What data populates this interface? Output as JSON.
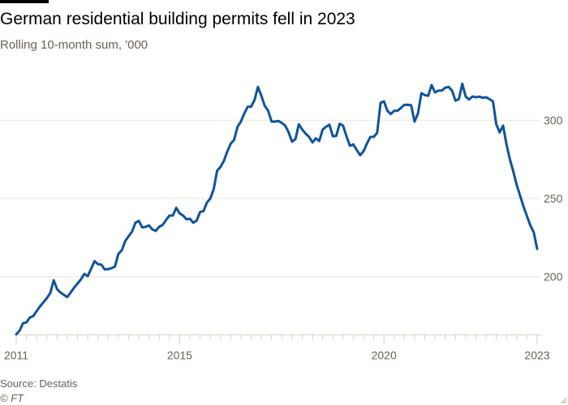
{
  "title": "German residential building permits fell in 2023",
  "subtitle": "Rolling 10-month sum, '000",
  "source": "Source: Destatis",
  "copyright": "© FT",
  "colors": {
    "line": "#0f5499",
    "grid": "#e9e3dd",
    "axis": "#d6cfc8",
    "text": "#66605c"
  },
  "chart_data": {
    "type": "line",
    "title": "German residential building permits fell in 2023",
    "subtitle": "Rolling 10-month sum, '000",
    "xlabel": "",
    "ylabel": "",
    "xlim": [
      "2011-01",
      "2023-10"
    ],
    "ylim": [
      163,
      330
    ],
    "grid": true,
    "y_axis_side": "right",
    "y_ticks": [
      200,
      250,
      300
    ],
    "y_tick_labels": [
      "200",
      "250",
      "300"
    ],
    "x_ticks": [
      "2011-01",
      "2015-01",
      "2020-01",
      "2023-10"
    ],
    "x_tick_labels": [
      "2011",
      "2015",
      "2020",
      "2023"
    ],
    "x_minor_ticks": "quarterly",
    "series": [
      {
        "color": "#0f5499",
        "x": [
          "2011-01",
          "2011-02",
          "2011-03",
          "2011-04",
          "2011-05",
          "2011-06",
          "2011-07",
          "2011-08",
          "2011-09",
          "2011-10",
          "2011-11",
          "2011-12",
          "2012-01",
          "2012-02",
          "2012-03",
          "2012-04",
          "2012-05",
          "2012-06",
          "2012-07",
          "2012-08",
          "2012-09",
          "2012-10",
          "2012-11",
          "2012-12",
          "2013-01",
          "2013-02",
          "2013-03",
          "2013-04",
          "2013-05",
          "2013-06",
          "2013-07",
          "2013-08",
          "2013-09",
          "2013-10",
          "2013-11",
          "2013-12",
          "2014-01",
          "2014-02",
          "2014-03",
          "2014-04",
          "2014-05",
          "2014-06",
          "2014-07",
          "2014-08",
          "2014-09",
          "2014-10",
          "2014-11",
          "2014-12",
          "2015-01",
          "2015-02",
          "2015-03",
          "2015-04",
          "2015-05",
          "2015-06",
          "2015-07",
          "2015-08",
          "2015-09",
          "2015-10",
          "2015-11",
          "2015-12",
          "2016-01",
          "2016-02",
          "2016-03",
          "2016-04",
          "2016-05",
          "2016-06",
          "2016-07",
          "2016-08",
          "2016-09",
          "2016-10",
          "2016-11",
          "2016-12",
          "2017-01",
          "2017-02",
          "2017-03",
          "2017-04",
          "2017-05",
          "2017-06",
          "2017-07",
          "2017-08",
          "2017-09",
          "2017-10",
          "2017-11",
          "2017-12",
          "2018-01",
          "2018-02",
          "2018-03",
          "2018-04",
          "2018-05",
          "2018-06",
          "2018-07",
          "2018-08",
          "2018-09",
          "2018-10",
          "2018-11",
          "2018-12",
          "2019-01",
          "2019-02",
          "2019-03",
          "2019-04",
          "2019-05",
          "2019-06",
          "2019-07",
          "2019-08",
          "2019-09",
          "2019-10",
          "2019-11",
          "2019-12",
          "2020-01",
          "2020-02",
          "2020-03",
          "2020-04",
          "2020-05",
          "2020-06",
          "2020-07",
          "2020-08",
          "2020-09",
          "2020-10",
          "2020-11",
          "2020-12",
          "2021-01",
          "2021-02",
          "2021-03",
          "2021-04",
          "2021-05",
          "2021-06",
          "2021-07",
          "2021-08",
          "2021-09",
          "2021-10",
          "2021-11",
          "2021-12",
          "2022-01",
          "2022-02",
          "2022-03",
          "2022-04",
          "2022-05",
          "2022-06",
          "2022-07",
          "2022-08",
          "2022-09",
          "2022-10",
          "2022-11",
          "2022-12",
          "2023-01",
          "2023-02",
          "2023-03",
          "2023-04",
          "2023-05",
          "2023-06",
          "2023-07",
          "2023-08",
          "2023-09",
          "2023-10"
        ],
        "values": [
          163.3,
          165.7,
          170.4,
          170.9,
          174.0,
          175.0,
          178.1,
          181.2,
          183.8,
          186.4,
          189.7,
          197.8,
          192.1,
          190.0,
          188.5,
          187.1,
          190.0,
          193.1,
          195.7,
          198.3,
          201.9,
          200.4,
          205.2,
          210.0,
          208.1,
          207.8,
          204.7,
          204.9,
          205.5,
          206.6,
          214.7,
          216.9,
          222.8,
          225.9,
          228.8,
          234.5,
          235.7,
          231.5,
          231.9,
          232.8,
          230.2,
          229.3,
          231.9,
          233.1,
          236.2,
          239.1,
          239.1,
          244.0,
          240.5,
          239.1,
          236.7,
          237.1,
          234.5,
          235.9,
          241.4,
          241.9,
          247.4,
          250.0,
          256.0,
          267.7,
          270.2,
          274.1,
          280.1,
          285.0,
          287.4,
          295.7,
          299.1,
          304.3,
          308.6,
          308.6,
          312.9,
          321.2,
          315.5,
          309.1,
          306.0,
          299.1,
          299.1,
          299.5,
          298.2,
          296.5,
          292.2,
          286.2,
          287.9,
          297.4,
          294.0,
          291.4,
          289.3,
          285.8,
          288.4,
          286.7,
          294.0,
          295.7,
          297.1,
          289.7,
          290.0,
          297.7,
          296.5,
          289.7,
          283.6,
          284.5,
          281.0,
          277.6,
          280.1,
          285.0,
          289.3,
          289.3,
          291.9,
          311.0,
          312.0,
          306.0,
          303.9,
          306.0,
          306.0,
          307.8,
          309.8,
          309.8,
          309.5,
          299.1,
          304.3,
          317.2,
          316.0,
          315.5,
          322.4,
          317.7,
          318.9,
          318.9,
          320.7,
          321.2,
          318.9,
          312.4,
          313.4,
          323.3,
          315.0,
          313.2,
          315.1,
          314.6,
          315.0,
          314.3,
          314.6,
          313.4,
          312.0,
          297.4,
          292.2,
          296.5,
          284.5,
          275.0,
          267.2,
          258.6,
          251.7,
          244.8,
          238.8,
          232.8,
          228.4,
          217.8
        ]
      }
    ]
  }
}
